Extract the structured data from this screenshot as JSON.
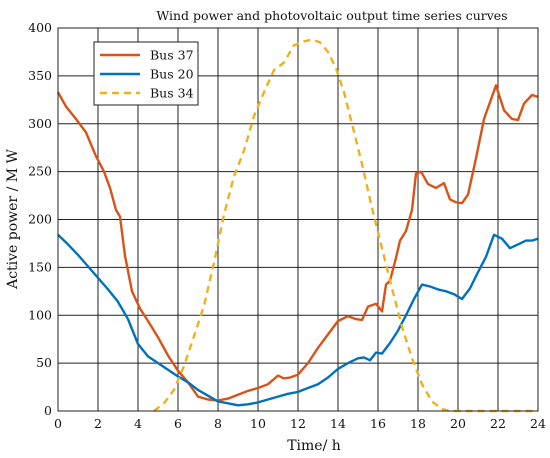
{
  "chart_data": {
    "type": "line",
    "title": "Wind power and photovoltaic output time series curves",
    "xlabel": "Time/ h",
    "ylabel": "Active power / M W",
    "xlim": [
      0,
      24
    ],
    "ylim": [
      0,
      400
    ],
    "xticks": [
      0,
      2,
      4,
      6,
      8,
      10,
      12,
      14,
      16,
      18,
      20,
      22,
      24
    ],
    "yticks": [
      0,
      50,
      100,
      150,
      200,
      250,
      300,
      350,
      400
    ],
    "grid": true,
    "legend_position": "top-left",
    "series": [
      {
        "name": "Bus 37",
        "color": "#D95319",
        "style": "solid",
        "x": [
          0,
          0.4,
          0.9,
          1.4,
          1.9,
          2.3,
          2.6,
          2.9,
          3.1,
          3.35,
          3.7,
          4.1,
          4.5,
          5.0,
          5.5,
          6.0,
          6.5,
          7.0,
          7.5,
          8.0,
          8.5,
          9.0,
          9.5,
          10.0,
          10.5,
          11.0,
          11.3,
          11.6,
          12.0,
          12.5,
          13.0,
          13.5,
          14.0,
          14.5,
          14.9,
          15.2,
          15.5,
          15.9,
          16.2,
          16.4,
          16.6,
          16.9,
          17.1,
          17.4,
          17.7,
          17.9,
          18.15,
          18.5,
          18.9,
          19.3,
          19.6,
          19.9,
          20.2,
          20.5,
          20.9,
          21.3,
          21.9,
          22.3,
          22.7,
          23.0,
          23.3,
          23.7,
          24.0
        ],
        "values": [
          333,
          318,
          305,
          291,
          266,
          250,
          233,
          210,
          203,
          162,
          125,
          107,
          94,
          77,
          58,
          42,
          30,
          15,
          12,
          11,
          13,
          17,
          21,
          24,
          28,
          37,
          34,
          35,
          38,
          50,
          66,
          80,
          94,
          99,
          96,
          95,
          109,
          112,
          104,
          132,
          136,
          160,
          178,
          188,
          210,
          248,
          250,
          237,
          233,
          238,
          221,
          218,
          217,
          226,
          264,
          305,
          340,
          314,
          305,
          304,
          321,
          330,
          328
        ]
      },
      {
        "name": "Bus 20",
        "color": "#0072BD",
        "style": "solid",
        "x": [
          0,
          0.5,
          1.0,
          1.5,
          2.0,
          2.5,
          3.0,
          3.5,
          4.0,
          4.5,
          5.0,
          5.5,
          6.0,
          6.5,
          7.0,
          7.5,
          8.0,
          8.5,
          9.0,
          9.5,
          10.0,
          10.5,
          11.0,
          11.5,
          12.0,
          12.5,
          13.0,
          13.5,
          14.0,
          14.5,
          15.0,
          15.3,
          15.6,
          15.9,
          16.2,
          16.6,
          17.0,
          17.4,
          17.8,
          18.2,
          18.6,
          19.0,
          19.4,
          19.8,
          20.2,
          20.6,
          21.0,
          21.4,
          21.8,
          22.2,
          22.6,
          23.0,
          23.4,
          23.7,
          24.0
        ],
        "values": [
          184,
          174,
          163,
          151,
          139,
          127,
          114,
          96,
          70,
          57,
          50,
          43,
          36,
          30,
          22,
          16,
          10,
          8,
          6,
          7,
          9,
          12,
          15,
          18,
          20,
          24,
          28,
          35,
          44,
          50,
          55,
          56,
          53,
          61,
          60,
          71,
          84,
          100,
          117,
          132,
          130,
          127,
          125,
          122,
          117,
          128,
          145,
          161,
          184,
          180,
          170,
          174,
          178,
          178,
          180
        ]
      },
      {
        "name": "Bus 34",
        "color": "#EDB120",
        "style": "dashed",
        "x": [
          4.8,
          5.3,
          5.8,
          6.3,
          6.8,
          7.3,
          7.8,
          8.3,
          8.8,
          9.3,
          9.8,
          10.3,
          10.8,
          11.3,
          11.8,
          12.3,
          12.7,
          13.1,
          13.5,
          13.9,
          14.3,
          14.7,
          15.2,
          15.7,
          16.2,
          16.7,
          17.2,
          17.7,
          18.2,
          18.7,
          19.2,
          19.6,
          24.0
        ],
        "values": [
          0,
          8,
          22,
          47,
          78,
          110,
          155,
          205,
          245,
          272,
          308,
          333,
          356,
          364,
          382,
          386,
          388,
          385,
          375,
          358,
          333,
          300,
          258,
          212,
          170,
          128,
          88,
          55,
          28,
          10,
          2,
          0,
          0
        ]
      }
    ]
  }
}
